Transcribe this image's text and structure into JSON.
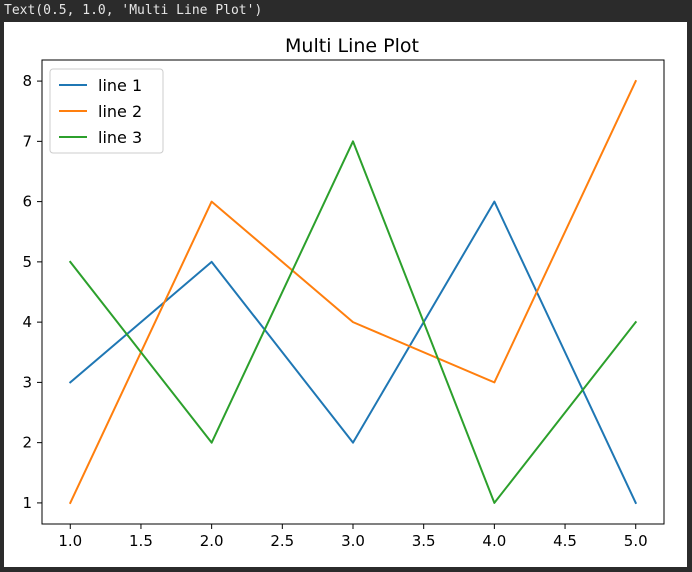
{
  "output_text": "Text(0.5, 1.0, 'Multi Line Plot')",
  "chart_data": {
    "type": "line",
    "title": "Multi Line Plot",
    "xlabel": "",
    "ylabel": "",
    "x": [
      1,
      2,
      3,
      4,
      5
    ],
    "xlim": [
      0.8,
      5.2
    ],
    "ylim": [
      0.65,
      8.35
    ],
    "xticks": [
      "1.0",
      "1.5",
      "2.0",
      "2.5",
      "3.0",
      "3.5",
      "4.0",
      "4.5",
      "5.0"
    ],
    "yticks": [
      "1",
      "2",
      "3",
      "4",
      "5",
      "6",
      "7",
      "8"
    ],
    "grid": false,
    "legend_position": "upper-left",
    "series": [
      {
        "name": "line 1",
        "color": "#1f77b4",
        "values": [
          3,
          5,
          2,
          6,
          1
        ]
      },
      {
        "name": "line 2",
        "color": "#ff7f0e",
        "values": [
          1,
          6,
          4,
          3,
          8
        ]
      },
      {
        "name": "line 3",
        "color": "#2ca02c",
        "values": [
          5,
          2,
          7,
          1,
          4
        ]
      }
    ]
  }
}
